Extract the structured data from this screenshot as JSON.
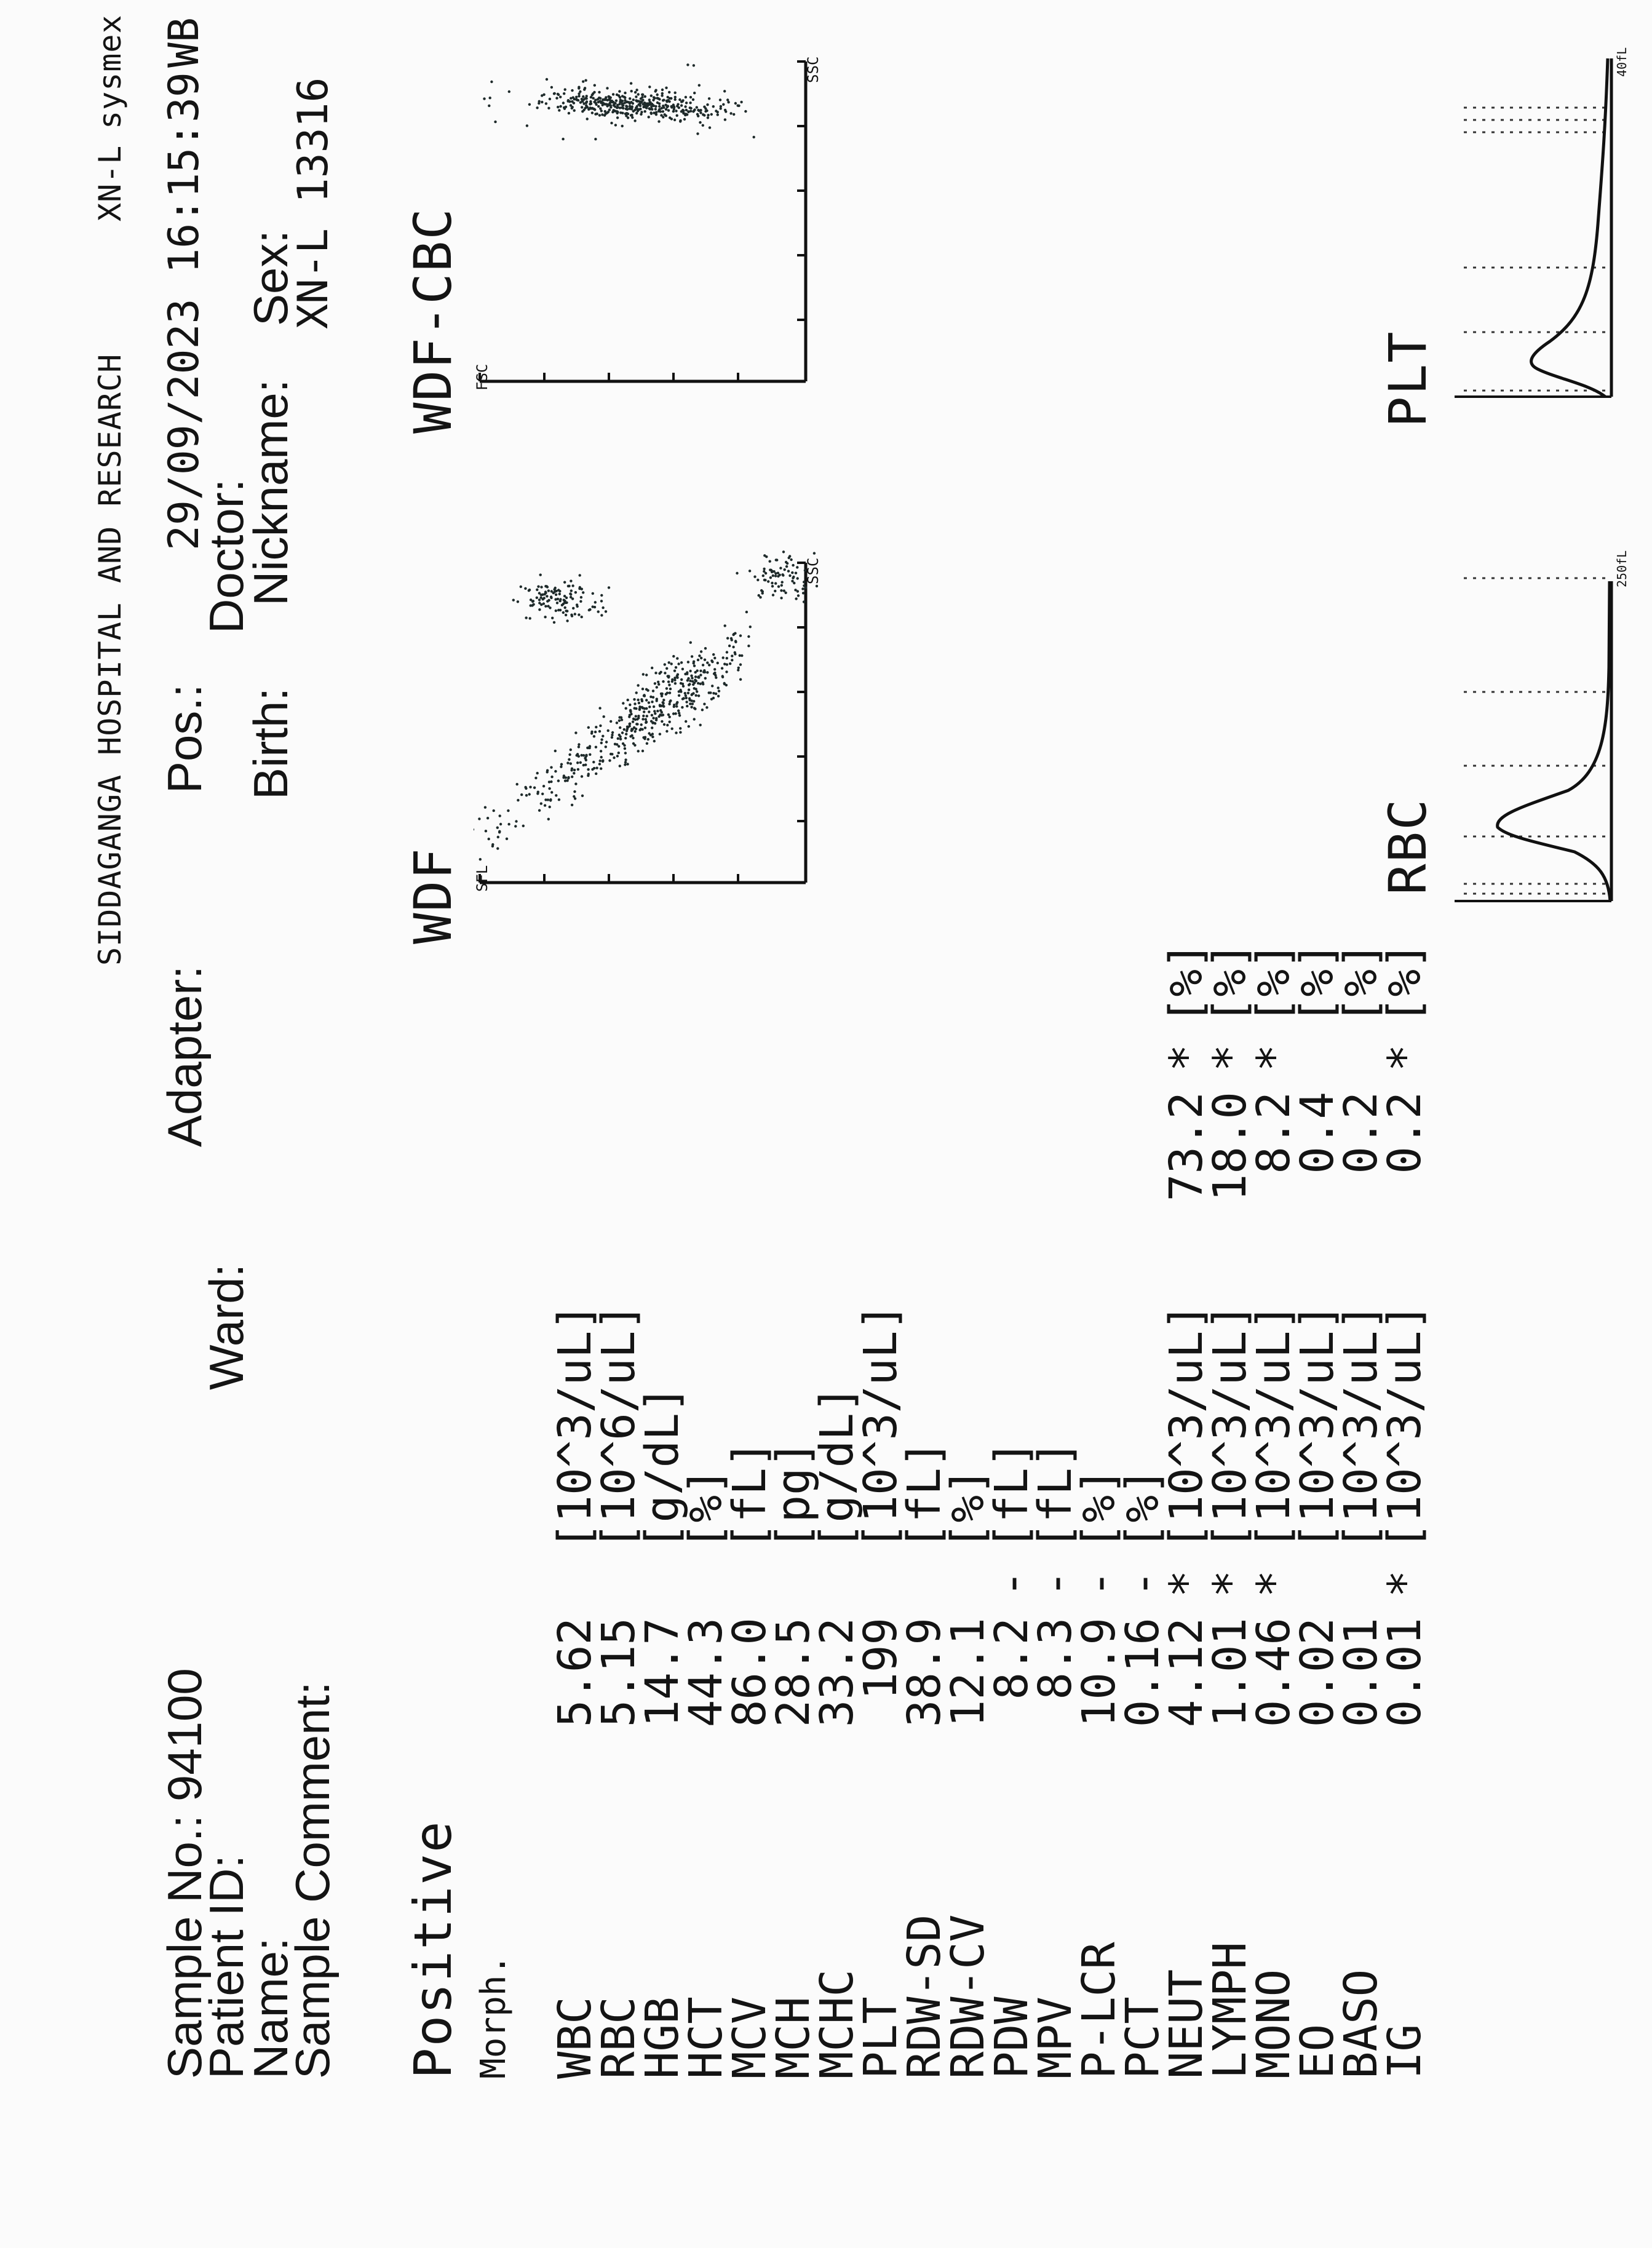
{
  "header": {
    "hospital": "SIDDAGANGA HOSPITAL AND RESEARCH",
    "analyzer": "XN-L",
    "brand": "sysmex",
    "datetime": "29/09/2023 16:15:39",
    "mode": "WB"
  },
  "patient": {
    "sample_no_label": "Sample No.:",
    "sample_no": "94100",
    "patient_id_label": "Patient ID:",
    "name_label": "Name:",
    "sample_comment_label": "Sample Comment:",
    "ward_label": "Ward:",
    "adapter_label": "Adapter:",
    "pos_label": "Pos.:",
    "doctor_label": "Doctor:",
    "birth_label": "Birth:",
    "sex_label": "Sex:",
    "nickname_label": "Nickname:",
    "nickname": "XN-L 13316"
  },
  "status": {
    "result": "Positive",
    "category": "Morph."
  },
  "results": [
    {
      "name": "WBC",
      "value": "5.62",
      "flag": "",
      "unit": "[10^3/uL]"
    },
    {
      "name": "RBC",
      "value": "5.15",
      "flag": "",
      "unit": "[10^6/uL]"
    },
    {
      "name": "HGB",
      "value": "14.7",
      "flag": "",
      "unit": "[g/dL]"
    },
    {
      "name": "HCT",
      "value": "44.3",
      "flag": "",
      "unit": "[%]"
    },
    {
      "name": "MCV",
      "value": "86.0",
      "flag": "",
      "unit": "[fL]"
    },
    {
      "name": "MCH",
      "value": "28.5",
      "flag": "",
      "unit": "[pg]"
    },
    {
      "name": "MCHC",
      "value": "33.2",
      "flag": "",
      "unit": "[g/dL]"
    },
    {
      "name": "PLT",
      "value": "199",
      "flag": "",
      "unit": "[10^3/uL]"
    },
    {
      "name": "RDW-SD",
      "value": "38.9",
      "flag": "",
      "unit": "[fL]"
    },
    {
      "name": "RDW-CV",
      "value": "12.1",
      "flag": "",
      "unit": "[%]"
    },
    {
      "name": "PDW",
      "value": "8.2",
      "flag": "-",
      "unit": "[fL]"
    },
    {
      "name": "MPV",
      "value": "8.3",
      "flag": "-",
      "unit": "[fL]"
    },
    {
      "name": "P-LCR",
      "value": "10.9",
      "flag": "-",
      "unit": "[%]"
    },
    {
      "name": "PCT",
      "value": "0.16",
      "flag": "-",
      "unit": "[%]"
    },
    {
      "name": "NEUT",
      "value": "4.12",
      "flag": "*",
      "unit": "[10^3/uL]"
    },
    {
      "name": "LYMPH",
      "value": "1.01",
      "flag": "*",
      "unit": "[10^3/uL]"
    },
    {
      "name": "MONO",
      "value": "0.46",
      "flag": "*",
      "unit": "[10^3/uL]"
    },
    {
      "name": "EO",
      "value": "0.02",
      "flag": "",
      "unit": "[10^3/uL]"
    },
    {
      "name": "BASO",
      "value": "0.01",
      "flag": "",
      "unit": "[10^3/uL]"
    },
    {
      "name": "IG",
      "value": "0.01",
      "flag": "*",
      "unit": "[10^3/uL]"
    }
  ],
  "differential": [
    {
      "value": "73.2",
      "flag": "*",
      "unit": "[%]"
    },
    {
      "value": "18.0",
      "flag": "*",
      "unit": "[%]"
    },
    {
      "value": "8.2",
      "flag": "*",
      "unit": "[%]"
    },
    {
      "value": "0.4",
      "flag": "",
      "unit": "[%]"
    },
    {
      "value": "0.2",
      "flag": "",
      "unit": "[%]"
    },
    {
      "value": "0.2",
      "flag": "*",
      "unit": "[%]"
    }
  ],
  "plots": {
    "wdf": {
      "title": "WDF",
      "y_axis": "SFL",
      "x_axis": "SSC"
    },
    "wdf_cbc": {
      "title": "WDF-CBC",
      "y_axis": "FSC",
      "x_axis": "SSC"
    },
    "rbc": {
      "title": "RBC",
      "scale_label": "250fL"
    },
    "plt": {
      "title": "PLT",
      "scale_label": "40fL"
    }
  }
}
